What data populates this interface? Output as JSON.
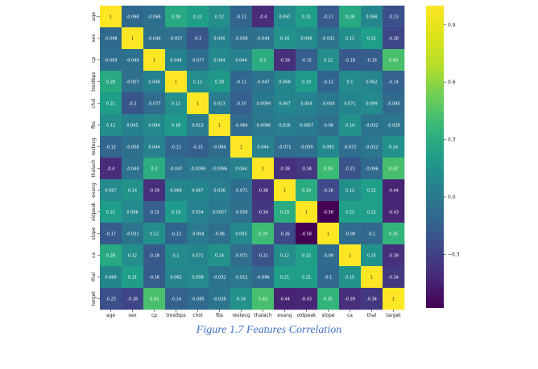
{
  "caption": "Figure 1.7 Features Correlation",
  "chart_data": {
    "type": "heatmap",
    "colormap": "viridis",
    "labels": [
      "age",
      "sex",
      "cp",
      "trestbps",
      "chol",
      "fbs",
      "restecg",
      "thalach",
      "exang",
      "oldpeak",
      "slope",
      "ca",
      "thal",
      "target"
    ],
    "values": [
      [
        1,
        -0.098,
        -0.069,
        0.28,
        0.21,
        0.12,
        -0.12,
        -0.4,
        0.097,
        0.21,
        -0.17,
        0.28,
        0.068,
        -0.23
      ],
      [
        -0.098,
        1,
        -0.049,
        -0.057,
        -0.2,
        0.045,
        -0.058,
        -0.044,
        0.14,
        0.096,
        -0.031,
        0.12,
        0.21,
        -0.28
      ],
      [
        -0.069,
        -0.049,
        1,
        0.048,
        -0.077,
        0.094,
        0.044,
        0.3,
        -0.39,
        -0.15,
        0.12,
        -0.18,
        -0.16,
        0.43
      ],
      [
        0.28,
        -0.057,
        0.048,
        1,
        0.12,
        0.18,
        -0.11,
        -0.047,
        0.068,
        0.19,
        -0.12,
        0.1,
        0.062,
        -0.14
      ],
      [
        0.21,
        -0.2,
        -0.077,
        0.12,
        1,
        0.013,
        -0.15,
        -0.0099,
        0.067,
        0.054,
        -0.004,
        0.071,
        0.099,
        -0.085
      ],
      [
        0.12,
        0.045,
        0.094,
        0.18,
        0.013,
        1,
        -0.084,
        -0.0086,
        0.026,
        0.0057,
        -0.06,
        0.14,
        -0.032,
        -0.028
      ],
      [
        -0.12,
        -0.058,
        0.044,
        -0.11,
        -0.15,
        -0.084,
        1,
        0.044,
        -0.071,
        -0.059,
        0.093,
        -0.072,
        -0.012,
        0.14
      ],
      [
        -0.4,
        -0.044,
        0.3,
        -0.047,
        -0.0099,
        -0.0086,
        0.044,
        1,
        -0.38,
        -0.34,
        0.39,
        -0.21,
        -0.096,
        0.42
      ],
      [
        0.097,
        0.14,
        -0.39,
        0.068,
        0.067,
        0.026,
        -0.071,
        -0.38,
        1,
        0.29,
        -0.26,
        0.12,
        0.21,
        -0.44
      ],
      [
        0.21,
        0.096,
        -0.15,
        0.19,
        0.054,
        0.0057,
        -0.059,
        -0.34,
        0.29,
        1,
        -0.58,
        0.22,
        0.21,
        -0.43
      ],
      [
        -0.17,
        -0.031,
        0.12,
        -0.12,
        -0.004,
        -0.06,
        0.093,
        0.39,
        -0.26,
        -0.58,
        1,
        -0.08,
        -0.1,
        0.35
      ],
      [
        0.28,
        0.12,
        -0.18,
        0.1,
        0.071,
        0.14,
        -0.072,
        -0.21,
        0.12,
        0.22,
        -0.08,
        1,
        0.15,
        -0.39
      ],
      [
        0.068,
        0.21,
        -0.16,
        0.062,
        0.099,
        -0.032,
        -0.012,
        -0.096,
        0.21,
        0.21,
        -0.1,
        0.15,
        1,
        -0.34
      ],
      [
        -0.23,
        -0.28,
        0.43,
        -0.14,
        -0.085,
        -0.028,
        0.14,
        0.42,
        -0.44,
        -0.43,
        0.35,
        -0.39,
        -0.34,
        1
      ]
    ],
    "value_range": [
      -0.58,
      1.0
    ],
    "colorbar_ticks": [
      0.9,
      0.6,
      0.3,
      0.0,
      -0.3
    ],
    "colorbar_tick_labels": [
      "0.9",
      "0.6",
      "0.3",
      "0.0",
      "−0.3"
    ]
  }
}
